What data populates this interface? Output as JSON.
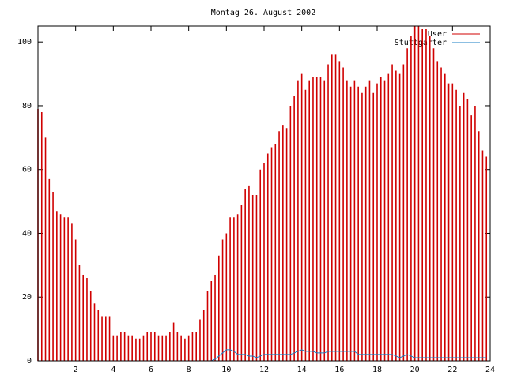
{
  "chart_data": {
    "type": "impulses",
    "title": "Montag 26. August 2002",
    "xlim": [
      0,
      24
    ],
    "xticks": [
      2,
      4,
      6,
      8,
      10,
      12,
      14,
      16,
      18,
      20,
      22,
      24
    ],
    "ylim": [
      0,
      105
    ],
    "yticks": [
      0,
      20,
      40,
      60,
      80,
      100
    ],
    "legend": "upper right",
    "x": [
      0,
      0.2,
      0.4,
      0.6,
      0.8,
      1,
      1.2,
      1.4,
      1.6,
      1.8,
      2,
      2.2,
      2.4,
      2.6,
      2.8,
      3,
      3.2,
      3.4,
      3.6,
      3.8,
      4,
      4.2,
      4.4,
      4.6,
      4.8,
      5,
      5.2,
      5.4,
      5.6,
      5.8,
      6,
      6.2,
      6.4,
      6.6,
      6.8,
      7,
      7.2,
      7.4,
      7.6,
      7.8,
      8,
      8.2,
      8.4,
      8.6,
      8.8,
      9,
      9.2,
      9.4,
      9.6,
      9.8,
      10,
      10.2,
      10.4,
      10.6,
      10.8,
      11,
      11.2,
      11.4,
      11.6,
      11.8,
      12,
      12.2,
      12.4,
      12.6,
      12.8,
      13,
      13.2,
      13.4,
      13.6,
      13.8,
      14,
      14.2,
      14.4,
      14.6,
      14.8,
      15,
      15.2,
      15.4,
      15.6,
      15.8,
      16,
      16.2,
      16.4,
      16.6,
      16.8,
      17,
      17.2,
      17.4,
      17.6,
      17.8,
      18,
      18.2,
      18.4,
      18.6,
      18.8,
      19,
      19.2,
      19.4,
      19.6,
      19.8,
      20,
      20.2,
      20.4,
      20.6,
      20.8,
      21,
      21.2,
      21.4,
      21.6,
      21.8,
      22,
      22.2,
      22.4,
      22.6,
      22.8,
      23,
      23.2,
      23.4,
      23.6,
      23.8
    ],
    "series": [
      {
        "name": "User",
        "color": "#d00000",
        "style": "impulses",
        "values": [
          79,
          78,
          70,
          57,
          53,
          47,
          46,
          45,
          45,
          43,
          38,
          30,
          27,
          26,
          22,
          18,
          16,
          14,
          14,
          14,
          8,
          8,
          9,
          9,
          8,
          8,
          7,
          7,
          8,
          9,
          9,
          9,
          8,
          8,
          8,
          9,
          12,
          9,
          8,
          7,
          8,
          9,
          9,
          13,
          16,
          22,
          25,
          27,
          33,
          38,
          40,
          45,
          45,
          46,
          49,
          54,
          55,
          52,
          52,
          60,
          62,
          65,
          67,
          68,
          72,
          74,
          73,
          80,
          83,
          88,
          90,
          85,
          88,
          89,
          89,
          89,
          88,
          93,
          96,
          96,
          94,
          92,
          88,
          86,
          88,
          86,
          84,
          86,
          88,
          84,
          87,
          89,
          88,
          90,
          93,
          91,
          90,
          93,
          98,
          102,
          105,
          105,
          104,
          104,
          102,
          98,
          94,
          92,
          90,
          87,
          87,
          85,
          80,
          84,
          82,
          77,
          80,
          72,
          66,
          64
        ]
      },
      {
        "name": "Stuttgarter",
        "color": "#1a7fc4",
        "style": "line",
        "values": [
          0,
          0,
          0,
          0,
          0,
          0,
          0,
          0,
          0,
          0,
          0,
          0,
          0,
          0,
          0,
          0,
          0,
          0,
          0,
          0,
          0,
          0,
          0,
          0,
          0,
          0,
          0,
          0,
          0,
          0,
          0,
          0,
          0,
          0,
          0,
          0,
          0,
          0,
          0,
          0,
          0,
          0,
          0,
          0,
          0,
          0,
          0,
          0.5,
          1.5,
          2.5,
          3.5,
          3.5,
          3,
          2,
          2,
          2,
          1.5,
          1.5,
          1,
          1.5,
          2,
          2,
          2,
          2,
          2,
          2,
          2,
          2,
          2.5,
          3,
          3.5,
          3,
          3,
          3,
          2.5,
          2.5,
          2.5,
          3,
          3,
          3,
          3,
          3,
          3,
          3,
          3,
          2,
          2,
          2,
          2,
          2,
          2,
          2,
          2,
          2,
          2,
          1.5,
          1,
          1.5,
          2,
          1.5,
          1,
          1,
          1,
          1,
          1,
          1,
          1,
          1,
          1,
          1,
          1,
          1,
          1,
          1,
          1,
          1,
          1,
          1,
          1,
          1
        ]
      }
    ]
  }
}
